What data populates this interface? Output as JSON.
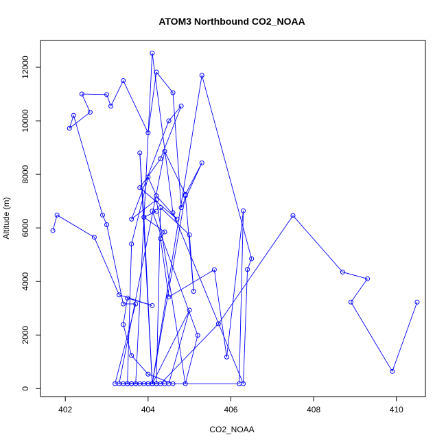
{
  "chart_data": {
    "type": "line",
    "title": "ATOM3 Northbound CO2_NOAA",
    "xlabel": "CO2_NOAA",
    "ylabel": "Altitude (m)",
    "xlim": [
      401.4,
      410.7
    ],
    "ylim": [
      -300,
      13000
    ],
    "xticks": [
      402,
      404,
      406,
      408,
      410
    ],
    "yticks": [
      0,
      2000,
      4000,
      6000,
      8000,
      10000,
      12000
    ],
    "grid": false,
    "legend": "none",
    "color": "#0000ff",
    "marker": "open-circle",
    "series": [
      {
        "x": [
          401.7,
          401.8,
          402.7,
          403.3,
          404.1,
          403.5,
          403.4,
          403.6,
          404.0,
          404.6,
          406.2,
          406.3,
          405.9,
          405.6,
          404.5,
          404.3,
          404.4,
          403.9,
          404.2,
          404.1,
          405.2,
          404.9,
          404.2,
          403.6,
          404.5,
          404.8,
          404.3,
          403.8,
          404.7,
          404.2,
          404.0,
          403.6,
          403.5,
          403.7,
          404.2,
          403.9,
          403.6,
          403.5,
          403.4,
          403.6,
          404.0,
          404.4,
          404.0,
          403.2,
          403.7,
          403.4,
          403.0,
          402.9,
          402.2,
          402.1,
          402.6,
          402.4,
          403.0,
          403.1,
          403.4,
          404.0,
          404.2,
          404.6,
          404.8,
          405.3,
          404.9,
          404.4,
          403.3,
          403.6,
          403.8,
          404.1,
          404.9,
          405.1,
          405.0,
          404.3,
          404.2,
          404.5,
          405.0,
          404.1,
          403.8,
          403.9,
          404.1,
          405.3,
          406.5,
          406.4,
          406.3,
          404.6,
          404.1,
          403.7,
          404.3,
          405.7,
          407.5,
          408.7,
          409.3,
          408.9,
          409.9,
          410.5
        ],
        "y": [
          5900,
          6480,
          5650,
          3500,
          3100,
          3380,
          2390,
          1230,
          540,
          180,
          180,
          6640,
          1180,
          4440,
          3420,
          5600,
          5850,
          6400,
          6620,
          6630,
          1990,
          180,
          7050,
          6330,
          10000,
          10550,
          8580,
          7500,
          6330,
          7200,
          7900,
          5400,
          180,
          180,
          180,
          180,
          180,
          180,
          180,
          180,
          180,
          180,
          180,
          180,
          3160,
          3160,
          6120,
          6480,
          10200,
          9720,
          10320,
          11000,
          10980,
          10550,
          11500,
          9550,
          11820,
          11050,
          6760,
          8430,
          7250,
          8860,
          180,
          180,
          180,
          180,
          7200,
          3630,
          5740,
          6760,
          180,
          180,
          2930,
          180,
          8800,
          6400,
          180,
          11700,
          4850,
          4450,
          180,
          6570,
          12530,
          180,
          180,
          2420,
          6460,
          4350,
          4100,
          3230,
          640,
          3230
        ]
      }
    ]
  }
}
